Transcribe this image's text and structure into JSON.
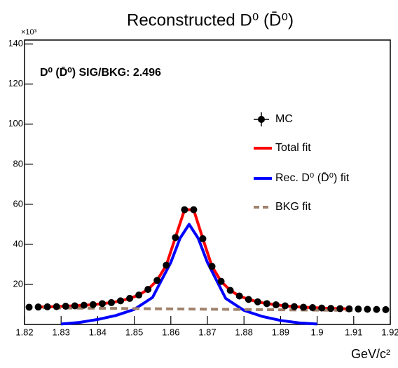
{
  "chart_data": {
    "type": "line",
    "title": "Reconstructed D⁰ (D̄⁰)",
    "annotation": "D⁰ (D̄⁰) SIG/BKG: 2.496",
    "x_label": "GeV/c²",
    "y_multiplier": "×10³",
    "xlim": [
      1.82,
      1.92
    ],
    "xticks": [
      1.82,
      1.83,
      1.84,
      1.85,
      1.86,
      1.87,
      1.88,
      1.89,
      {
        "value": 1.9,
        "label": "1.9"
      },
      1.91,
      1.92
    ],
    "ylim": [
      0,
      142
    ],
    "yticks": [
      20,
      40,
      60,
      80,
      100,
      120,
      140
    ],
    "series": [
      {
        "name": "MC",
        "color": "#000000",
        "style": "points",
        "x": [
          1.82125,
          1.82375,
          1.82625,
          1.82875,
          1.83125,
          1.83375,
          1.83625,
          1.83875,
          1.84125,
          1.84375,
          1.84625,
          1.84875,
          1.85125,
          1.85375,
          1.85625,
          1.85875,
          1.86125,
          1.86375,
          1.86625,
          1.86875,
          1.87125,
          1.87375,
          1.87625,
          1.87875,
          1.88125,
          1.88375,
          1.88625,
          1.88875,
          1.89125,
          1.89375,
          1.89625,
          1.89875,
          1.90125,
          1.90375,
          1.90625,
          1.90875,
          1.91125,
          1.91375,
          1.91625,
          1.91875
        ],
        "values": [
          8.6,
          8.7,
          8.8,
          8.9,
          9.1,
          9.3,
          9.6,
          9.9,
          10.4,
          10.9,
          11.8,
          13.0,
          14.7,
          17.5,
          22.0,
          29.6,
          43.4,
          57.3,
          57.3,
          42.8,
          29.0,
          21.5,
          17.0,
          14.2,
          12.5,
          11.3,
          10.4,
          9.8,
          9.3,
          8.9,
          8.6,
          8.4,
          8.2,
          8.0,
          7.9,
          7.8,
          7.7,
          7.6,
          7.5,
          7.4
        ]
      },
      {
        "name": "Total fit",
        "color": "#ff0000",
        "style": "solid",
        "x": [
          1.82375,
          1.82625,
          1.82875,
          1.83125,
          1.83375,
          1.83625,
          1.83875,
          1.84125,
          1.84375,
          1.84625,
          1.84875,
          1.85125,
          1.85375,
          1.85625,
          1.85875,
          1.86125,
          1.86375,
          1.86625,
          1.86875,
          1.87125,
          1.87375,
          1.87625,
          1.87875,
          1.88125,
          1.88375,
          1.88625,
          1.88875,
          1.89125,
          1.89375,
          1.89625,
          1.89875,
          1.90125,
          1.90375,
          1.90625,
          1.90875
        ],
        "values": [
          8.7,
          8.8,
          8.9,
          9.1,
          9.3,
          9.6,
          9.9,
          10.4,
          10.9,
          11.8,
          13.0,
          14.7,
          17.5,
          22.0,
          29.6,
          43.4,
          57.3,
          57.3,
          42.8,
          29.0,
          21.5,
          17.0,
          14.2,
          12.5,
          11.3,
          10.4,
          9.8,
          9.3,
          8.9,
          8.6,
          8.4,
          8.2,
          8.0,
          7.9,
          7.8
        ]
      },
      {
        "name": "Rec. D⁰ (D̄⁰) fit",
        "color": "#0000ff",
        "style": "solid",
        "x": [
          1.83,
          1.835,
          1.84,
          1.845,
          1.85,
          1.855,
          1.86,
          1.8625,
          1.865,
          1.8675,
          1.87,
          1.875,
          1.88,
          1.885,
          1.89,
          1.895,
          1.9
        ],
        "values": [
          0.2,
          1.0,
          2.5,
          4.5,
          7.5,
          13.5,
          31,
          43,
          50,
          43,
          31,
          13,
          7,
          4,
          2,
          0.8,
          0.2
        ]
      },
      {
        "name": "BKG fit",
        "color": "#a0826d",
        "style": "dashed",
        "x": [
          1.825,
          1.91
        ],
        "values": [
          8.3,
          7.0
        ]
      }
    ]
  }
}
